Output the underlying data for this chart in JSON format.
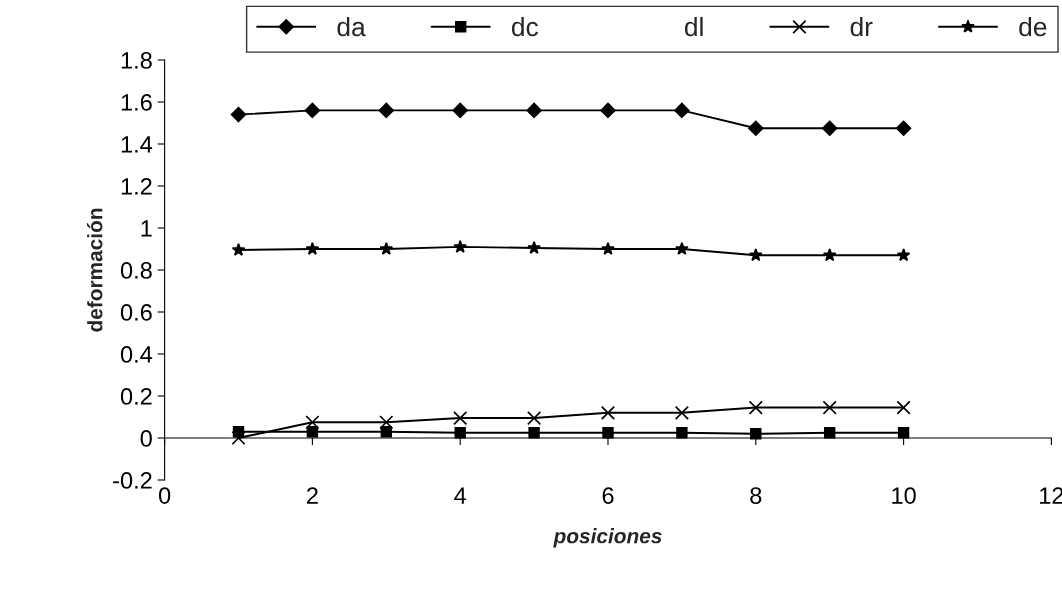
{
  "chart_data": {
    "type": "line",
    "xlabel": "posiciones",
    "ylabel": "deformación",
    "x": [
      1,
      2,
      3,
      4,
      5,
      6,
      7,
      8,
      9,
      10
    ],
    "series": [
      {
        "name": "da",
        "color": "#000000",
        "marker": "diamond",
        "values": [
          1.54,
          1.56,
          1.56,
          1.56,
          1.56,
          1.56,
          1.56,
          1.475,
          1.475,
          1.475
        ]
      },
      {
        "name": "dc",
        "color": "#000000",
        "marker": "square",
        "values": [
          0.03,
          0.03,
          0.03,
          0.025,
          0.025,
          0.025,
          0.025,
          0.02,
          0.025,
          0.025
        ]
      },
      {
        "name": "dl",
        "marker": "none",
        "values": [
          null,
          null,
          null,
          null,
          null,
          null,
          null,
          null,
          null,
          null
        ]
      },
      {
        "name": "dr",
        "color": "#000000",
        "marker": "cross",
        "values": [
          0,
          0.075,
          0.075,
          0.095,
          0.095,
          0.12,
          0.12,
          0.145,
          0.145,
          0.145
        ]
      },
      {
        "name": "de",
        "color": "#000000",
        "marker": "star",
        "values": [
          0.895,
          0.9,
          0.9,
          0.91,
          0.905,
          0.9,
          0.9,
          0.87,
          0.87,
          0.87
        ]
      }
    ],
    "xlim": [
      0,
      12
    ],
    "xticks": [
      0,
      2,
      4,
      6,
      8,
      10,
      12
    ],
    "ylim": [
      -0.2,
      1.8
    ],
    "yticks": [
      -0.2,
      0,
      0.2,
      0.4,
      0.6,
      0.8,
      1,
      1.2,
      1.4,
      1.6,
      1.8
    ],
    "grid": false,
    "legend": "top"
  }
}
